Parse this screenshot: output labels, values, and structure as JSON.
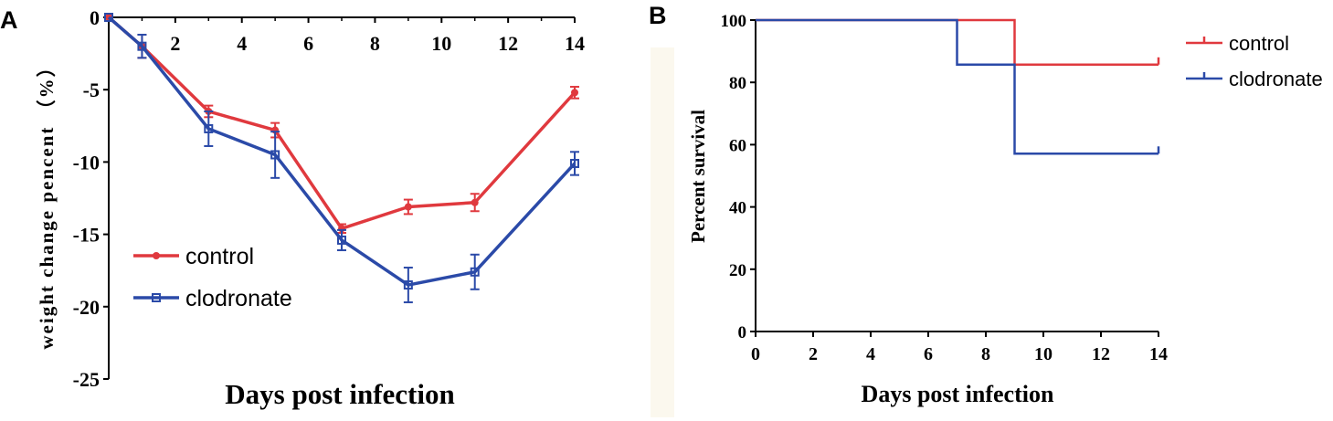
{
  "chart_data": [
    {
      "panel_label": "A",
      "type": "line",
      "title": "",
      "xlabel": "Days post infection",
      "ylabel": "weight change pencent （%）",
      "xlim": [
        0,
        14
      ],
      "ylim": [
        -25,
        0
      ],
      "x_ticks": [
        "2",
        "4",
        "6",
        "8",
        "10",
        "12",
        "14"
      ],
      "y_ticks": [
        "0",
        "-5",
        "-10",
        "-15",
        "-20",
        "-25"
      ],
      "series": [
        {
          "name": "control",
          "color": "#e0393e",
          "marker": "circle",
          "x": [
            0,
            1,
            3,
            5,
            7,
            9,
            11,
            14
          ],
          "values": [
            0,
            -2,
            -6.5,
            -7.8,
            -14.6,
            -13.1,
            -12.8,
            -5.2
          ],
          "errors": [
            0,
            0.8,
            0.4,
            0.5,
            0.3,
            0.5,
            0.6,
            0.4
          ]
        },
        {
          "name": "clodronate",
          "color": "#2b4aa8",
          "marker": "square",
          "x": [
            0,
            1,
            3,
            5,
            7,
            9,
            11,
            14
          ],
          "values": [
            0,
            -2,
            -7.7,
            -9.5,
            -15.4,
            -18.5,
            -17.6,
            -10.1
          ],
          "errors": [
            0,
            0.8,
            1.2,
            1.6,
            0.7,
            1.2,
            1.2,
            0.8
          ]
        }
      ],
      "legend": "lower-left"
    },
    {
      "panel_label": "B",
      "type": "line",
      "title": "",
      "xlabel": "Days post infection",
      "ylabel": "Percent survival",
      "xlim": [
        0,
        14
      ],
      "ylim": [
        0,
        100
      ],
      "x_ticks": [
        "0",
        "2",
        "4",
        "6",
        "8",
        "10",
        "12",
        "14"
      ],
      "y_ticks": [
        "0",
        "20",
        "40",
        "60",
        "80",
        "100"
      ],
      "series": [
        {
          "name": "control",
          "color": "#e0393e",
          "x": [
            0,
            9,
            9,
            14
          ],
          "values": [
            100,
            100,
            85.7,
            85.7
          ]
        },
        {
          "name": "clodronate",
          "color": "#2b4aa8",
          "x": [
            0,
            7,
            7,
            9,
            9,
            14
          ],
          "values": [
            100,
            100,
            85.7,
            85.7,
            57.1,
            57.1
          ]
        }
      ],
      "legend": "top-right"
    }
  ]
}
